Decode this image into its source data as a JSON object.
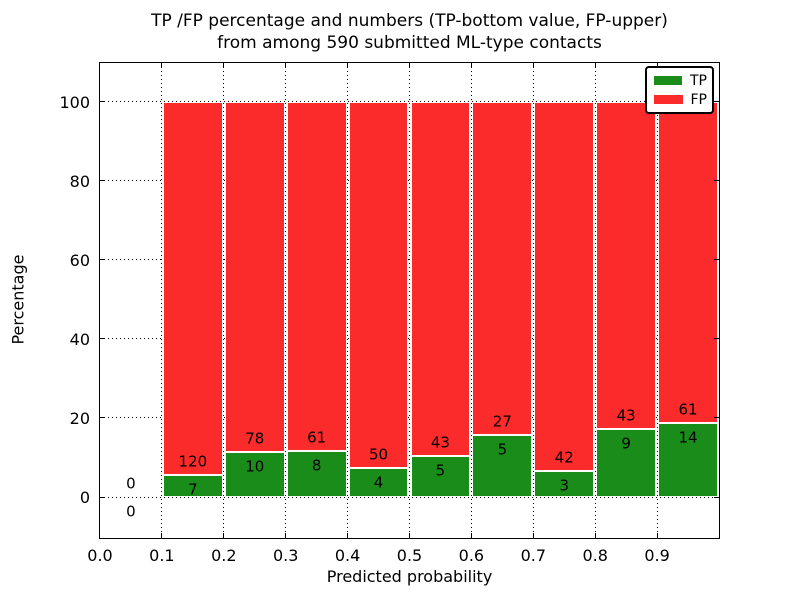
{
  "chart_data": {
    "type": "bar",
    "stacked": true,
    "normalized_to_percent": true,
    "title_line1": "TP /FP percentage and numbers (TP-bottom value, FP-upper)",
    "title_line2": "from among 590 submitted ML-type contacts",
    "xlabel": "Predicted probability",
    "ylabel": "Percentage",
    "total_submitted_contacts": 590,
    "xlim": [
      0.0,
      1.0
    ],
    "ylim": [
      -11,
      110
    ],
    "x_tick_values": [
      0.0,
      0.1,
      0.2,
      0.3,
      0.4,
      0.5,
      0.6,
      0.7,
      0.8,
      0.9
    ],
    "x_tick_labels": [
      "0.0",
      "0.1",
      "0.2",
      "0.3",
      "0.4",
      "0.5",
      "0.6",
      "0.7",
      "0.8",
      "0.9"
    ],
    "y_tick_values": [
      0,
      20,
      40,
      60,
      80,
      100
    ],
    "y_tick_labels": [
      "0",
      "20",
      "40",
      "60",
      "80",
      "100"
    ],
    "grid": "dotted, both axes",
    "legend": {
      "position": "upper right",
      "entries": [
        {
          "label": "TP",
          "color": "#1a8c1a"
        },
        {
          "label": "FP",
          "color": "#fb2b2b"
        }
      ]
    },
    "colors": {
      "tp_green": "#1a8c1a",
      "fp_red": "#fb2b2b",
      "text": "#000000",
      "background": "#ffffff"
    },
    "bins": [
      {
        "range": "0.0-0.1",
        "x_start": 0.0,
        "tp_count": 0,
        "fp_count": 0
      },
      {
        "range": "0.1-0.2",
        "x_start": 0.1,
        "tp_count": 7,
        "fp_count": 120
      },
      {
        "range": "0.2-0.3",
        "x_start": 0.2,
        "tp_count": 10,
        "fp_count": 78
      },
      {
        "range": "0.3-0.4",
        "x_start": 0.3,
        "tp_count": 8,
        "fp_count": 61
      },
      {
        "range": "0.4-0.5",
        "x_start": 0.4,
        "tp_count": 4,
        "fp_count": 50
      },
      {
        "range": "0.5-0.6",
        "x_start": 0.5,
        "tp_count": 5,
        "fp_count": 43
      },
      {
        "range": "0.6-0.7",
        "x_start": 0.6,
        "tp_count": 5,
        "fp_count": 27
      },
      {
        "range": "0.7-0.8",
        "x_start": 0.7,
        "tp_count": 3,
        "fp_count": 42
      },
      {
        "range": "0.8-0.9",
        "x_start": 0.8,
        "tp_count": 9,
        "fp_count": 43
      },
      {
        "range": "0.9-1.0",
        "x_start": 0.9,
        "tp_count": 14,
        "fp_count": 61
      }
    ]
  }
}
